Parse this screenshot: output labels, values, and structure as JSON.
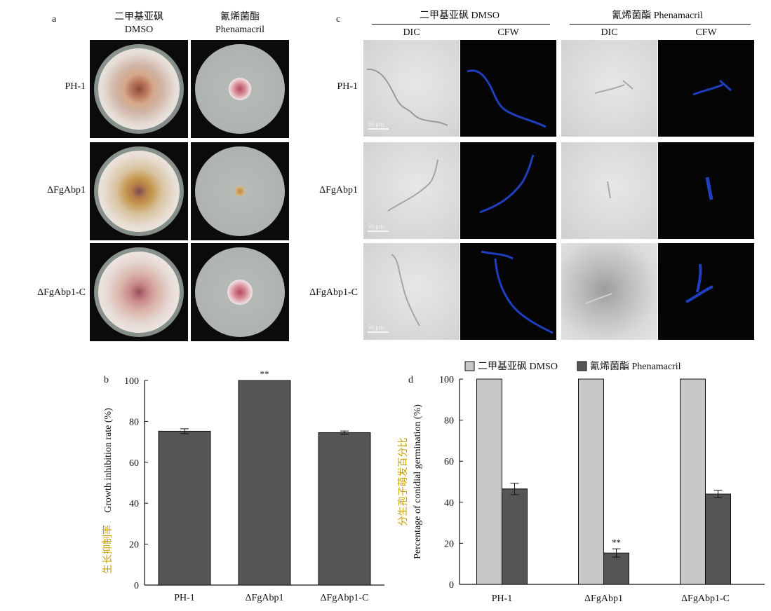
{
  "panel_labels": {
    "a": "a",
    "b": "b",
    "c": "c",
    "d": "d"
  },
  "panel_a": {
    "col_headers": [
      {
        "cn": "二甲基亚砜",
        "en": "DMSO"
      },
      {
        "cn": "氰烯菌酯",
        "en": "Phenamacril"
      }
    ],
    "row_labels": [
      "PH-1",
      "ΔFgAbp1",
      "ΔFgAbp1-C"
    ]
  },
  "panel_c": {
    "group_headers": [
      "二甲基亚砜 DMSO",
      "氰烯菌酯 Phenamacril"
    ],
    "sub_headers": [
      "DIC",
      "CFW",
      "DIC",
      "CFW"
    ],
    "row_labels": [
      "PH-1",
      "ΔFgAbp1",
      "ΔFgAbp1-C"
    ],
    "scale_text": "50 μm",
    "colors": {
      "hypha_stain": "#1f3fbf"
    }
  },
  "chart_data": [
    {
      "type": "bar",
      "panel": "b",
      "categories": [
        "PH-1",
        "ΔFgAbp1",
        "ΔFgAbp1-C"
      ],
      "values": [
        75.2,
        100,
        74.5
      ],
      "errors": [
        1.2,
        0,
        0.8
      ],
      "annotations": [
        "",
        "**",
        ""
      ],
      "ylabel_cn": "生长抑制率",
      "ylabel_en": "Growth inhibition rate (%)",
      "yticks": [
        0,
        20,
        40,
        60,
        80,
        100
      ],
      "ylim": [
        0,
        100
      ],
      "color": "#555555"
    },
    {
      "type": "bar",
      "panel": "d",
      "categories": [
        "PH-1",
        "ΔFgAbp1",
        "ΔFgAbp1-C"
      ],
      "series": [
        {
          "name": "二甲基亚砜 DMSO",
          "values": [
            100,
            100,
            100
          ],
          "errors": [
            0,
            0,
            0
          ],
          "color": "#c8c8c8"
        },
        {
          "name": "氰烯菌酯 Phenamacril",
          "values": [
            46.5,
            15.3,
            44
          ],
          "errors": [
            2.8,
            2.0,
            1.8
          ],
          "color": "#555555"
        }
      ],
      "annotations": [
        "",
        "**",
        ""
      ],
      "ylabel_cn": "分生孢子萌发百分比",
      "ylabel_en": "Percentage of conidial germination (%)",
      "yticks": [
        0,
        20,
        40,
        60,
        80,
        100
      ],
      "ylim": [
        0,
        100
      ],
      "legend_position": "top"
    }
  ]
}
